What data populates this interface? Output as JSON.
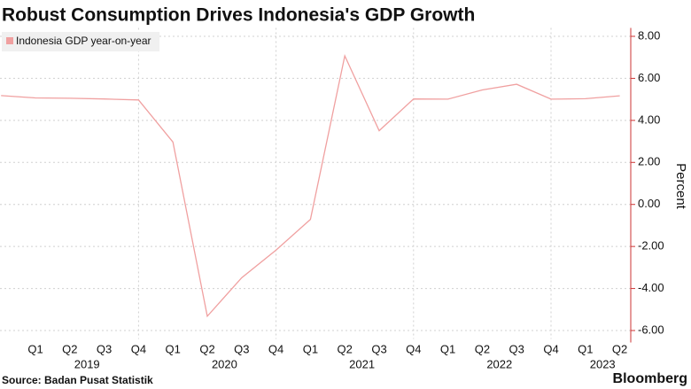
{
  "chart_data": {
    "type": "line",
    "title": "Robust Consumption Drives Indonesia's GDP Growth",
    "y_axis_label": "Percent",
    "source": "Source: Badan Pusat Statistik",
    "brand": "Bloomberg",
    "categories": [
      null,
      "Q1",
      "Q2",
      "Q3",
      "Q4",
      "Q1",
      "Q2",
      "Q3",
      "Q4",
      "Q1",
      "Q2",
      "Q3",
      "Q4",
      "Q1",
      "Q2",
      "Q3",
      "Q4",
      "Q1",
      "Q2"
    ],
    "year_labels": [
      "2019",
      "2020",
      "2021",
      "2022",
      "2023"
    ],
    "series": [
      {
        "name": "Indonesia GDP year-on-year",
        "color": "#f0a0a0",
        "values": [
          5.18,
          5.07,
          5.05,
          5.02,
          4.97,
          2.97,
          -5.32,
          -3.49,
          -2.17,
          -0.71,
          7.07,
          3.51,
          5.02,
          5.01,
          5.45,
          5.72,
          5.01,
          5.03,
          5.17
        ]
      }
    ],
    "ylim": [
      -6.4,
      8.4
    ],
    "yticks": [
      {
        "value": -6,
        "label": "-6.00"
      },
      {
        "value": -4,
        "label": "-4.00"
      },
      {
        "value": -2,
        "label": "-2.00"
      },
      {
        "value": 0,
        "label": "0.00"
      },
      {
        "value": 2,
        "label": "2.00"
      },
      {
        "value": 4,
        "label": "4.00"
      },
      {
        "value": 6,
        "label": "6.00"
      },
      {
        "value": 8,
        "label": "8.00"
      }
    ],
    "grid": true,
    "legend": "top-left"
  }
}
